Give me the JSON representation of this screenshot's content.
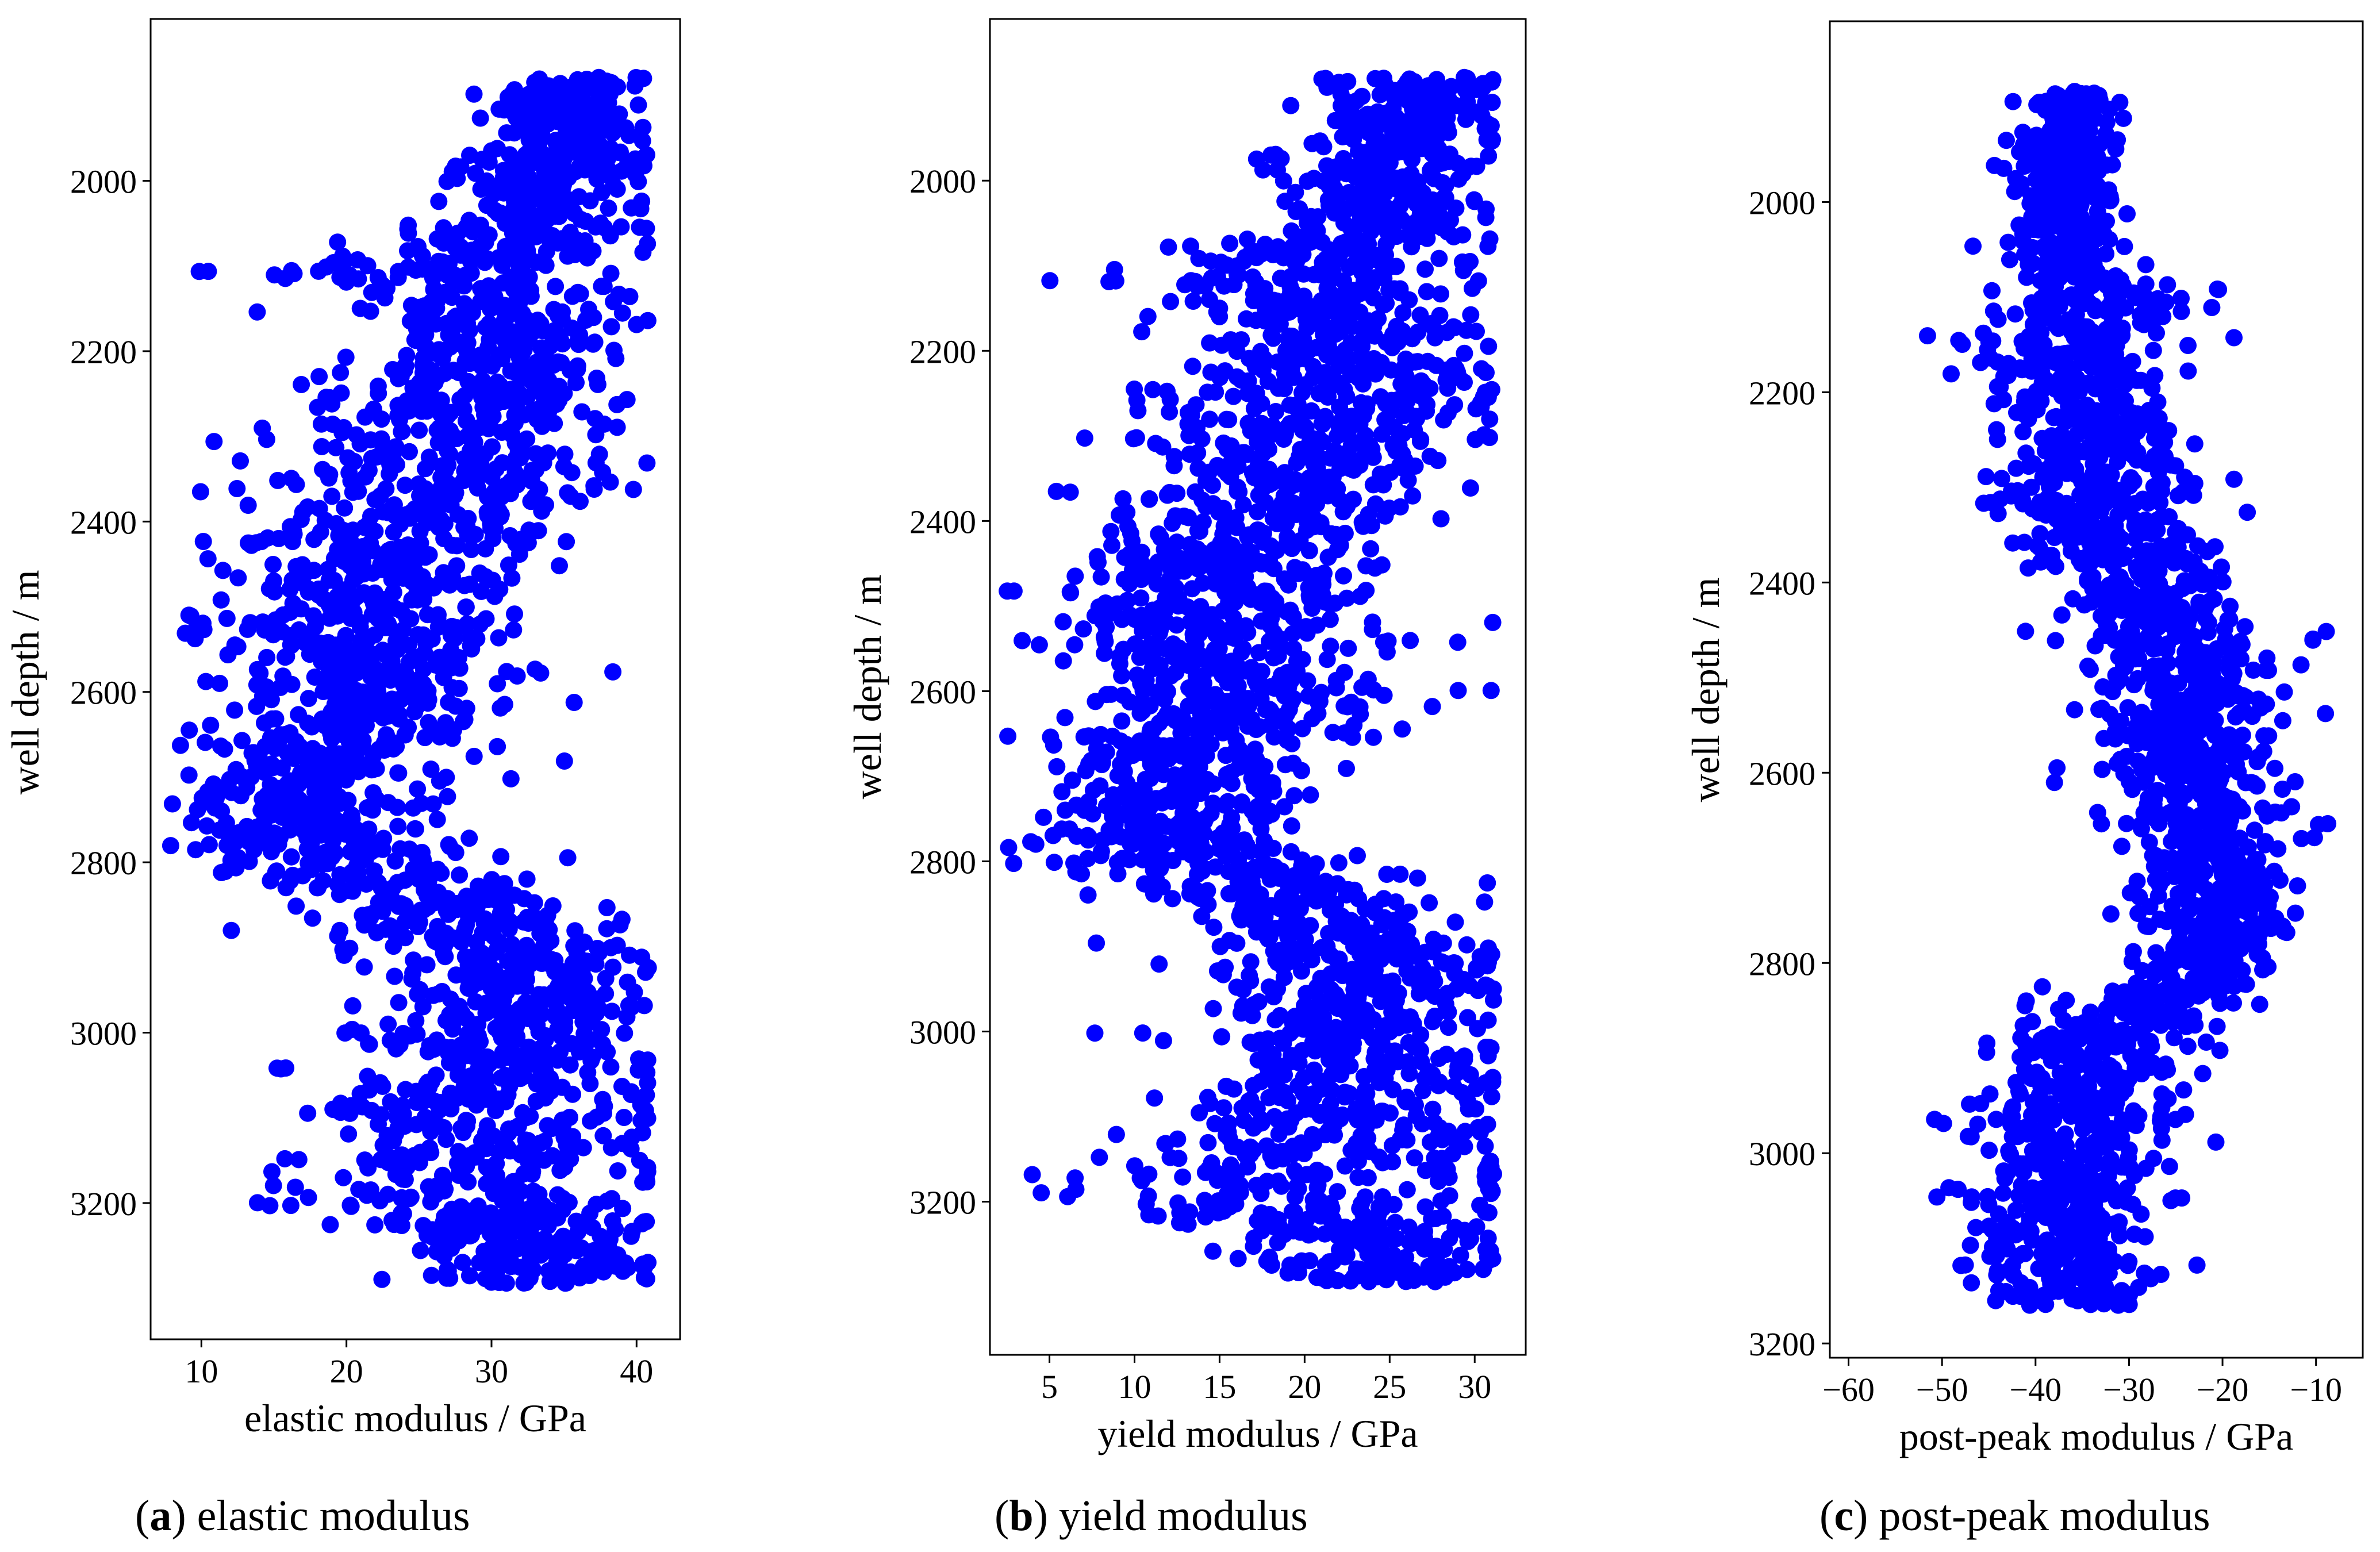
{
  "figure": {
    "panels": [
      {
        "letter": "a",
        "caption": " elastic modulus"
      },
      {
        "letter": "b",
        "caption": " yield modulus"
      },
      {
        "letter": "c",
        "caption": " post-peak modulus"
      }
    ],
    "marker_color": "#0000ff"
  },
  "chart_data": [
    {
      "type": "scatter",
      "title": "",
      "xlabel": "elastic modulus / GPa",
      "ylabel": "well depth / m",
      "xlim": [
        6.5,
        43
      ],
      "ylim": [
        3360,
        1810
      ],
      "y_inverted": true,
      "xticks": [
        10,
        20,
        30,
        40
      ],
      "yticks": [
        2000,
        2200,
        2400,
        2600,
        2800,
        3000,
        3200
      ],
      "grid": false,
      "color": "#0000ff",
      "depth_range": [
        1880,
        3295
      ],
      "profile": [
        [
          1880,
          35.5,
          3.8
        ],
        [
          1950,
          35,
          3.5
        ],
        [
          2000,
          34,
          4
        ],
        [
          2050,
          33,
          4.5
        ],
        [
          2100,
          28,
          8
        ],
        [
          2150,
          30,
          7
        ],
        [
          2200,
          31,
          6.5
        ],
        [
          2250,
          29,
          7.5
        ],
        [
          2300,
          27,
          8
        ],
        [
          2350,
          27,
          7
        ],
        [
          2400,
          25,
          7
        ],
        [
          2450,
          23,
          7.5
        ],
        [
          2500,
          21,
          8
        ],
        [
          2550,
          21,
          7.5
        ],
        [
          2600,
          22,
          7
        ],
        [
          2650,
          20,
          6.5
        ],
        [
          2700,
          18,
          6
        ],
        [
          2750,
          18,
          6
        ],
        [
          2800,
          20,
          7
        ],
        [
          2850,
          26,
          8
        ],
        [
          2900,
          31,
          7
        ],
        [
          2950,
          32,
          6.5
        ],
        [
          3000,
          31,
          7
        ],
        [
          3050,
          30,
          7.5
        ],
        [
          3100,
          30,
          8
        ],
        [
          3150,
          29,
          9
        ],
        [
          3200,
          28,
          9.5
        ],
        [
          3250,
          33,
          6
        ],
        [
          3295,
          34,
          5
        ]
      ]
    },
    {
      "type": "scatter",
      "title": "",
      "xlabel": "yield modulus / GPa",
      "ylabel": "well depth / m",
      "xlim": [
        1.5,
        33
      ],
      "ylim": [
        3380,
        1810
      ],
      "y_inverted": true,
      "xticks": [
        5,
        10,
        15,
        20,
        25,
        30
      ],
      "yticks": [
        2000,
        2200,
        2400,
        2600,
        2800,
        3000,
        3200
      ],
      "grid": false,
      "color": "#0000ff",
      "depth_range": [
        1880,
        3295
      ],
      "profile": [
        [
          1880,
          26.5,
          3.3
        ],
        [
          1950,
          26,
          3.2
        ],
        [
          2000,
          25,
          3.6
        ],
        [
          2050,
          24.5,
          4
        ],
        [
          2100,
          20.5,
          7
        ],
        [
          2150,
          22,
          6
        ],
        [
          2200,
          23,
          5.5
        ],
        [
          2250,
          21,
          6.5
        ],
        [
          2300,
          20,
          7
        ],
        [
          2350,
          19.5,
          6.5
        ],
        [
          2400,
          18,
          6.5
        ],
        [
          2450,
          16,
          6.5
        ],
        [
          2500,
          15,
          7
        ],
        [
          2550,
          15,
          6.5
        ],
        [
          2600,
          16,
          6
        ],
        [
          2650,
          14,
          6
        ],
        [
          2700,
          12.5,
          5
        ],
        [
          2750,
          12,
          5
        ],
        [
          2800,
          14,
          6.5
        ],
        [
          2850,
          19,
          7
        ],
        [
          2900,
          23,
          6
        ],
        [
          2950,
          24,
          5.5
        ],
        [
          3000,
          23,
          6
        ],
        [
          3050,
          22,
          6.5
        ],
        [
          3100,
          22,
          7
        ],
        [
          3150,
          21,
          8
        ],
        [
          3200,
          20,
          8.5
        ],
        [
          3250,
          24.5,
          5.5
        ],
        [
          3295,
          25,
          5
        ]
      ]
    },
    {
      "type": "scatter",
      "title": "",
      "xlabel": "post-peak modulus / GPa",
      "ylabel": "well depth / m",
      "xlim": [
        -62,
        -5
      ],
      "ylim": [
        3215,
        1810
      ],
      "y_inverted": true,
      "xticks": [
        -60,
        -50,
        -40,
        -30,
        -20,
        -10
      ],
      "yticks": [
        2000,
        2200,
        2400,
        2600,
        2800,
        3000,
        3200
      ],
      "grid": false,
      "color": "#0000ff",
      "depth_range": [
        1885,
        3160
      ],
      "profile": [
        [
          1885,
          -36,
          3
        ],
        [
          1950,
          -37,
          3.5
        ],
        [
          2000,
          -37,
          3.5
        ],
        [
          2050,
          -37,
          4
        ],
        [
          2100,
          -34,
          7
        ],
        [
          2150,
          -36,
          7
        ],
        [
          2200,
          -35,
          7.5
        ],
        [
          2250,
          -33,
          7.5
        ],
        [
          2300,
          -34,
          8
        ],
        [
          2350,
          -32,
          7
        ],
        [
          2400,
          -28,
          7
        ],
        [
          2450,
          -26,
          7
        ],
        [
          2500,
          -23,
          7
        ],
        [
          2550,
          -24,
          6.5
        ],
        [
          2600,
          -23,
          6
        ],
        [
          2650,
          -22,
          6
        ],
        [
          2700,
          -21,
          5.5
        ],
        [
          2750,
          -20,
          5.5
        ],
        [
          2800,
          -22,
          6
        ],
        [
          2850,
          -28,
          7
        ],
        [
          2900,
          -35,
          7
        ],
        [
          2950,
          -36,
          6.5
        ],
        [
          3000,
          -36,
          6.5
        ],
        [
          3050,
          -37,
          6.5
        ],
        [
          3100,
          -38,
          7.5
        ],
        [
          3160,
          -36,
          6
        ]
      ]
    }
  ]
}
